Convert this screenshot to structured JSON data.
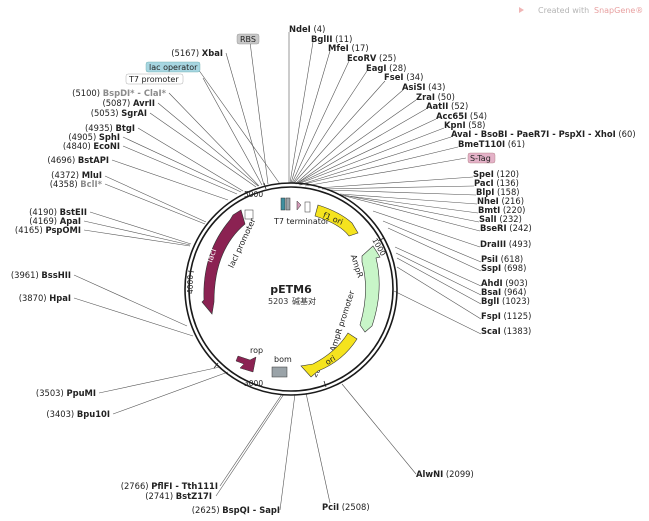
{
  "brand": {
    "text": "Created with",
    "name": "SnapGene®",
    "icon": "snapgene-logo-icon"
  },
  "plasmid": {
    "name": "pETM6",
    "length": "5203",
    "unit": "碱基对"
  },
  "ticks": [
    {
      "label": "1000",
      "pos": 1000
    },
    {
      "label": "2000",
      "pos": 2000
    },
    {
      "label": "3000",
      "pos": 3000
    },
    {
      "label": "4000",
      "pos": 4000
    },
    {
      "label": "5000",
      "pos": 5000
    }
  ],
  "boxed_labels": [
    {
      "text": "RBS"
    },
    {
      "text": "lac operator"
    },
    {
      "text": "T7 promoter"
    },
    {
      "text": "S-Tag"
    }
  ],
  "sites": [
    {
      "name": "NdeI",
      "pos": "(4)"
    },
    {
      "name": "BglII",
      "pos": "(11)"
    },
    {
      "name": "MfeI",
      "pos": "(17)"
    },
    {
      "name": "EcoRV",
      "pos": "(25)"
    },
    {
      "name": "EagI",
      "pos": "(28)"
    },
    {
      "name": "FseI",
      "pos": "(34)"
    },
    {
      "name": "AsiSI",
      "pos": "(43)"
    },
    {
      "name": "ZraI",
      "pos": "(50)"
    },
    {
      "name": "AatII",
      "pos": "(52)"
    },
    {
      "name": "Acc65I",
      "pos": "(54)"
    },
    {
      "name": "KpnI",
      "pos": "(58)"
    },
    {
      "name": "AvaI - BsoBI - PaeR7I - PspXI - XhoI",
      "pos": "(60)"
    },
    {
      "name": "BmeT110I",
      "pos": "(61)"
    },
    {
      "name": "SpeI",
      "pos": "(120)"
    },
    {
      "name": "PacI",
      "pos": "(136)"
    },
    {
      "name": "BlpI",
      "pos": "(158)"
    },
    {
      "name": "NheI",
      "pos": "(216)"
    },
    {
      "name": "BmtI",
      "pos": "(220)"
    },
    {
      "name": "SalI",
      "pos": "(232)"
    },
    {
      "name": "BseRI",
      "pos": "(242)"
    },
    {
      "name": "DraIII",
      "pos": "(493)"
    },
    {
      "name": "PsiI",
      "pos": "(618)"
    },
    {
      "name": "SspI",
      "pos": "(698)"
    },
    {
      "name": "AhdI",
      "pos": "(903)"
    },
    {
      "name": "BsaI",
      "pos": "(964)"
    },
    {
      "name": "BglI",
      "pos": "(1023)"
    },
    {
      "name": "FspI",
      "pos": "(1125)"
    },
    {
      "name": "ScaI",
      "pos": "(1383)"
    },
    {
      "name": "AlwNI",
      "pos": "(2099)"
    },
    {
      "name": "PciI",
      "pos": "(2508)"
    },
    {
      "name": "BspQI - SapI",
      "pos": "(2625)"
    },
    {
      "name": "BstZ17I",
      "pos": "(2741)"
    },
    {
      "name": "PflFI - Tth111I",
      "pos": "(2766)"
    },
    {
      "name": "Bpu10I",
      "pos": "(3403)"
    },
    {
      "name": "PpuMI",
      "pos": "(3503)"
    },
    {
      "name": "HpaI",
      "pos": "(3870)"
    },
    {
      "name": "BssHII",
      "pos": "(3961)"
    },
    {
      "name": "PspOMI",
      "pos": "(4165)"
    },
    {
      "name": "ApaI",
      "pos": "(4169)"
    },
    {
      "name": "BstEII",
      "pos": "(4190)"
    },
    {
      "name": "BclI*",
      "pos": "(4358)"
    },
    {
      "name": "MluI",
      "pos": "(4372)"
    },
    {
      "name": "BstAPI",
      "pos": "(4696)"
    },
    {
      "name": "EcoNI",
      "pos": "(4840)"
    },
    {
      "name": "SphI",
      "pos": "(4905)"
    },
    {
      "name": "BtgI",
      "pos": "(4935)"
    },
    {
      "name": "SgrAI",
      "pos": "(5053)"
    },
    {
      "name": "AvrII",
      "pos": "(5087)"
    },
    {
      "name": "BspDI* - ClaI*",
      "pos": "(5100)"
    },
    {
      "name": "XbaI",
      "pos": "(5167)"
    }
  ],
  "features": [
    {
      "name": "T7 terminator"
    },
    {
      "name": "f1 ori"
    },
    {
      "name": "AmpR"
    },
    {
      "name": "AmpR promoter"
    },
    {
      "name": "ori"
    },
    {
      "name": "bom"
    },
    {
      "name": "rop"
    },
    {
      "name": "lacI"
    },
    {
      "name": "lacI promoter"
    }
  ],
  "colors": {
    "yellow": "#f5e31e",
    "green": "#c8f5c8",
    "maroon": "#8b2252",
    "grey": "#9aa3a8",
    "pink": "#d49bb8",
    "teal": "#3f8f9f",
    "lacop": "#a7d6e1",
    "rbs_box": "#c8c8c8",
    "stag_box": "#e4b2c8"
  }
}
